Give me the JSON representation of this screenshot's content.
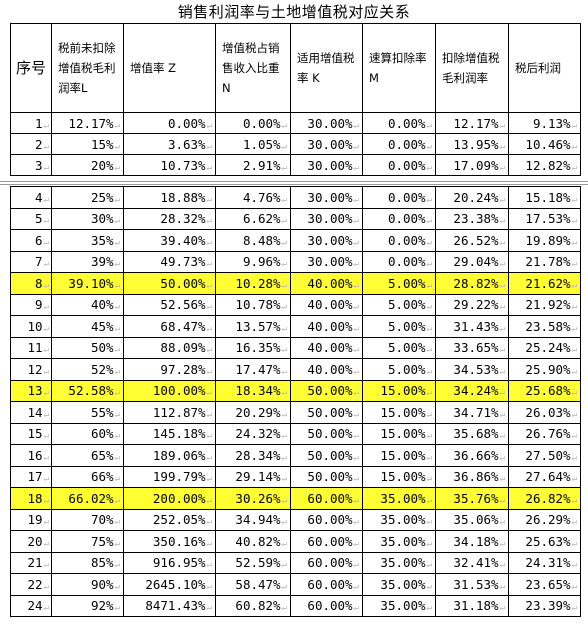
{
  "title": "销售利润率与土地增值税对应关系",
  "headers": {
    "seq": "序号",
    "pretax": "税前未扣除增值税毛利润率L",
    "rate": "增值率 Z",
    "share": "增值税占销售收入比重 N",
    "taxrate": "适用增值税率 K",
    "deduct": "速算扣除率 M",
    "gross": "扣除增值税毛利润率",
    "net": "税后利润"
  },
  "top_rows": [
    {
      "seq": "1",
      "pretax": "12.17%",
      "rate": "0.00%",
      "share": "0.00%",
      "taxrate": "30.00%",
      "deduct": "0.00%",
      "gross": "12.17%",
      "net": "9.13%"
    },
    {
      "seq": "2",
      "pretax": "15%",
      "rate": "3.63%",
      "share": "1.05%",
      "taxrate": "30.00%",
      "deduct": "0.00%",
      "gross": "13.95%",
      "net": "10.46%"
    },
    {
      "seq": "3",
      "pretax": "20%",
      "rate": "10.73%",
      "share": "2.91%",
      "taxrate": "30.00%",
      "deduct": "0.00%",
      "gross": "17.09%",
      "net": "12.82%"
    }
  ],
  "bottom_rows": [
    {
      "seq": "4",
      "pretax": "25%",
      "rate": "18.88%",
      "share": "4.76%",
      "taxrate": "30.00%",
      "deduct": "0.00%",
      "gross": "20.24%",
      "net": "15.18%"
    },
    {
      "seq": "5",
      "pretax": "30%",
      "rate": "28.32%",
      "share": "6.62%",
      "taxrate": "30.00%",
      "deduct": "0.00%",
      "gross": "23.38%",
      "net": "17.53%"
    },
    {
      "seq": "6",
      "pretax": "35%",
      "rate": "39.40%",
      "share": "8.48%",
      "taxrate": "30.00%",
      "deduct": "0.00%",
      "gross": "26.52%",
      "net": "19.89%"
    },
    {
      "seq": "7",
      "pretax": "39%",
      "rate": "49.73%",
      "share": "9.96%",
      "taxrate": "30.00%",
      "deduct": "0.00%",
      "gross": "29.04%",
      "net": "21.78%"
    },
    {
      "seq": "8",
      "pretax": "39.10%",
      "rate": "50.00%",
      "share": "10.28%",
      "taxrate": "40.00%",
      "deduct": "5.00%",
      "gross": "28.82%",
      "net": "21.62%",
      "highlight": true
    },
    {
      "seq": "9",
      "pretax": "40%",
      "rate": "52.56%",
      "share": "10.78%",
      "taxrate": "40.00%",
      "deduct": "5.00%",
      "gross": "29.22%",
      "net": "21.92%"
    },
    {
      "seq": "10",
      "pretax": "45%",
      "rate": "68.47%",
      "share": "13.57%",
      "taxrate": "40.00%",
      "deduct": "5.00%",
      "gross": "31.43%",
      "net": "23.58%"
    },
    {
      "seq": "11",
      "pretax": "50%",
      "rate": "88.09%",
      "share": "16.35%",
      "taxrate": "40.00%",
      "deduct": "5.00%",
      "gross": "33.65%",
      "net": "25.24%"
    },
    {
      "seq": "12",
      "pretax": "52%",
      "rate": "97.28%",
      "share": "17.47%",
      "taxrate": "40.00%",
      "deduct": "5.00%",
      "gross": "34.53%",
      "net": "25.90%"
    },
    {
      "seq": "13",
      "pretax": "52.58%",
      "rate": "100.00%",
      "share": "18.34%",
      "taxrate": "50.00%",
      "deduct": "15.00%",
      "gross": "34.24%",
      "net": "25.68%",
      "highlight": true
    },
    {
      "seq": "14",
      "pretax": "55%",
      "rate": "112.87%",
      "share": "20.29%",
      "taxrate": "50.00%",
      "deduct": "15.00%",
      "gross": "34.71%",
      "net": "26.03%"
    },
    {
      "seq": "15",
      "pretax": "60%",
      "rate": "145.18%",
      "share": "24.32%",
      "taxrate": "50.00%",
      "deduct": "15.00%",
      "gross": "35.68%",
      "net": "26.76%"
    },
    {
      "seq": "16",
      "pretax": "65%",
      "rate": "189.06%",
      "share": "28.34%",
      "taxrate": "50.00%",
      "deduct": "15.00%",
      "gross": "36.66%",
      "net": "27.50%"
    },
    {
      "seq": "17",
      "pretax": "66%",
      "rate": "199.79%",
      "share": "29.14%",
      "taxrate": "50.00%",
      "deduct": "15.00%",
      "gross": "36.86%",
      "net": "27.64%"
    },
    {
      "seq": "18",
      "pretax": "66.02%",
      "rate": "200.00%",
      "share": "30.26%",
      "taxrate": "60.00%",
      "deduct": "35.00%",
      "gross": "35.76%",
      "net": "26.82%",
      "highlight": true
    },
    {
      "seq": "19",
      "pretax": "70%",
      "rate": "252.05%",
      "share": "34.94%",
      "taxrate": "60.00%",
      "deduct": "35.00%",
      "gross": "35.06%",
      "net": "26.29%"
    },
    {
      "seq": "20",
      "pretax": "75%",
      "rate": "350.16%",
      "share": "40.82%",
      "taxrate": "60.00%",
      "deduct": "35.00%",
      "gross": "34.18%",
      "net": "25.63%"
    },
    {
      "seq": "21",
      "pretax": "85%",
      "rate": "916.95%",
      "share": "52.59%",
      "taxrate": "60.00%",
      "deduct": "35.00%",
      "gross": "32.41%",
      "net": "24.31%"
    },
    {
      "seq": "22",
      "pretax": "90%",
      "rate": "2645.10%",
      "share": "58.47%",
      "taxrate": "60.00%",
      "deduct": "35.00%",
      "gross": "31.53%",
      "net": "23.65%"
    },
    {
      "seq": "24",
      "pretax": "92%",
      "rate": "8471.43%",
      "share": "60.82%",
      "taxrate": "60.00%",
      "deduct": "35.00%",
      "gross": "31.18%",
      "net": "23.39%"
    }
  ],
  "colors": {
    "highlight": "#ffff33",
    "border": "#000000"
  }
}
